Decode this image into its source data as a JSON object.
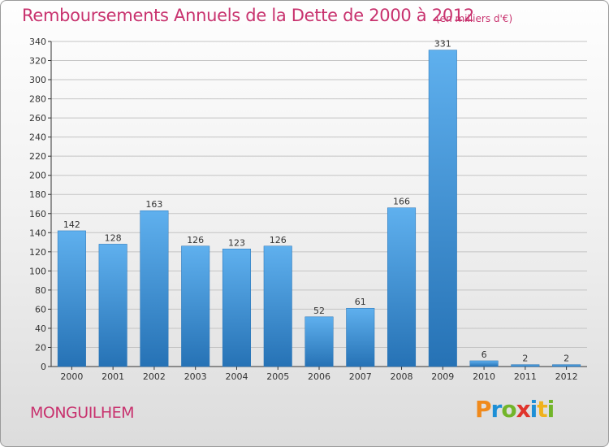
{
  "chart_data": {
    "type": "bar",
    "title": "Remboursements Annuels de la Dette de 2000 à 2012",
    "subtitle": "(en milliers d'€)",
    "xlabel": "",
    "ylabel": "",
    "categories": [
      "2000",
      "2001",
      "2002",
      "2003",
      "2004",
      "2005",
      "2006",
      "2007",
      "2008",
      "2009",
      "2010",
      "2011",
      "2012"
    ],
    "values": [
      142,
      128,
      163,
      126,
      123,
      126,
      52,
      61,
      166,
      331,
      6,
      2,
      2
    ],
    "data_labels": [
      "142",
      "128",
      "163",
      "126",
      "123",
      "126",
      "52",
      "61",
      "166",
      "331",
      "6",
      "2",
      "2"
    ],
    "ylim": [
      0,
      340
    ],
    "yticks": [
      0,
      20,
      40,
      60,
      80,
      100,
      120,
      140,
      160,
      180,
      200,
      220,
      240,
      260,
      280,
      300,
      320,
      340
    ],
    "grid": true,
    "legend": "none",
    "bar_color": "#3a8fd6",
    "bar_color_light": "#5fb0ee",
    "bar_color_dark": "#2672b5"
  },
  "commune": "MONGUILHEM",
  "logo": {
    "letters": [
      "P",
      "r",
      "o",
      "x",
      "i",
      "t",
      "i"
    ],
    "colors": [
      "#f08a1c",
      "#1d8fd6",
      "#72b52a",
      "#e0342c",
      "#1d8fd6",
      "#f0b21c",
      "#72b52a"
    ]
  },
  "colors": {
    "title": "#c8326e",
    "grid": "#c4c4c4",
    "axis": "#333333"
  }
}
